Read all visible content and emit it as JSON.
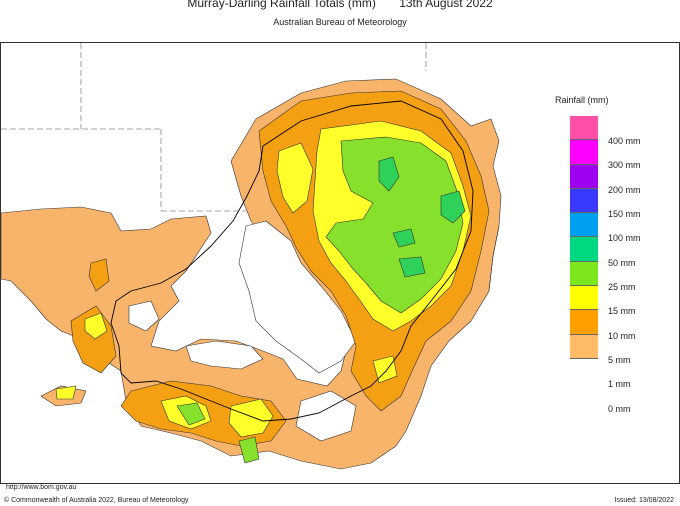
{
  "title": {
    "main": "Murray-Darling Rainfall Totals (mm)",
    "date": "13th August 2022"
  },
  "subtitle": "Australian Bureau of Meteorology",
  "legend": {
    "title": "Rainfall (mm)",
    "entries": [
      {
        "label": "400 mm",
        "color": "#ff4fa8"
      },
      {
        "label": "300 mm",
        "color": "#ff00ff"
      },
      {
        "label": "200 mm",
        "color": "#a000f0"
      },
      {
        "label": "150 mm",
        "color": "#3a3aff"
      },
      {
        "label": "100 mm",
        "color": "#00a0f0"
      },
      {
        "label": "50 mm",
        "color": "#00d880"
      },
      {
        "label": "25 mm",
        "color": "#7ce61e"
      },
      {
        "label": "15 mm",
        "color": "#ffff00"
      },
      {
        "label": "10 mm",
        "color": "#ffa000"
      },
      {
        "label": "5 mm",
        "color": "#ffbb66"
      },
      {
        "label": "1 mm",
        "color": "#ffffff"
      },
      {
        "label": "0 mm",
        "color": ""
      }
    ]
  },
  "map_colors": {
    "r1": "#f9b46b",
    "r5": "#f5a012",
    "r10": "#ffff2a",
    "r15": "#86e02c",
    "r25": "#2ed25a"
  },
  "footer": {
    "url": "http://www.bom.gov.au",
    "copyright": "© Commonwealth of Australia 2022, Bureau of Meteorology",
    "issued": "Issued: 13/08/2022"
  }
}
